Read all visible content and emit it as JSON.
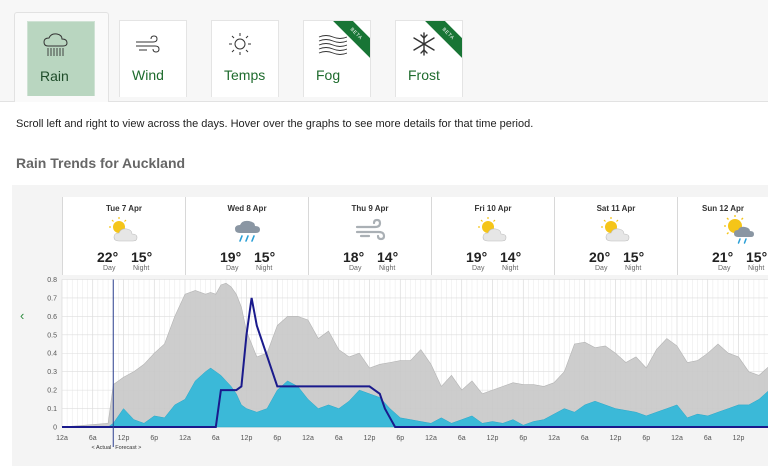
{
  "tabs": [
    {
      "label": "Rain",
      "icon": "rain-cloud-icon",
      "active": true,
      "beta": false
    },
    {
      "label": "Wind",
      "icon": "wind-icon",
      "active": false,
      "beta": false
    },
    {
      "label": "Temps",
      "icon": "sun-icon",
      "active": false,
      "beta": false
    },
    {
      "label": "Fog",
      "icon": "fog-icon",
      "active": false,
      "beta": true
    },
    {
      "label": "Frost",
      "icon": "snowflake-icon",
      "active": false,
      "beta": true
    }
  ],
  "beta_label": "BETA",
  "instructions": "Scroll left and right to view across the days. Hover over the graphs to see more details for that time period.",
  "section_title": "Rain Trends for Auckland",
  "scroll_left_icon": "chevron-left-icon",
  "day_label": "Day",
  "night_label": "Night",
  "days": [
    {
      "name": "Tue 7 Apr",
      "day": "22°",
      "night": "15°",
      "icon": "partly-cloudy-icon"
    },
    {
      "name": "Wed 8 Apr",
      "day": "19°",
      "night": "15°",
      "icon": "showers-icon"
    },
    {
      "name": "Thu 9 Apr",
      "day": "18°",
      "night": "14°",
      "icon": "windy-icon"
    },
    {
      "name": "Fri 10 Apr",
      "day": "19°",
      "night": "14°",
      "icon": "partly-cloudy-icon"
    },
    {
      "name": "Sat 11 Apr",
      "day": "20°",
      "night": "15°",
      "icon": "partly-cloudy-icon"
    },
    {
      "name": "Sun 12 Apr",
      "day": "21°",
      "night": "15°",
      "icon": "sun-showers-icon"
    }
  ],
  "chart_data": {
    "type": "area",
    "ylim": [
      0,
      0.8
    ],
    "yticks": [
      "0",
      "0.1",
      "0.2",
      "0.3",
      "0.4",
      "0.5",
      "0.6",
      "0.7",
      "0.8"
    ],
    "xticks": [
      "12a",
      "6a",
      "12p",
      "6p",
      "12a",
      "6a",
      "12p",
      "6p",
      "12a",
      "6a",
      "12p",
      "6p",
      "12a",
      "6a",
      "12p",
      "6p",
      "12a",
      "6a",
      "12p",
      "6p",
      "12a",
      "6a",
      "12p",
      "6p",
      "12a"
    ],
    "legend_actual": "< Actual",
    "legend_forecast": "Forecast >",
    "colors": {
      "range": "#c8c8c8",
      "likely": "#3bb9d8",
      "actual_line": "#1a1a8c",
      "now_line": "#2b3f8f"
    },
    "hours": [
      0,
      9,
      10,
      12,
      14,
      16,
      18,
      20,
      22,
      24,
      26,
      28,
      29,
      30,
      31,
      32,
      33,
      34,
      35,
      36,
      38,
      40,
      42,
      44,
      46,
      48,
      50,
      52,
      54,
      56,
      58,
      60,
      62,
      64,
      66,
      68,
      70,
      72,
      74,
      76,
      78,
      80,
      82,
      84,
      86,
      88,
      90,
      92,
      94,
      96,
      98,
      100,
      102,
      104,
      106,
      108,
      110,
      112,
      114,
      116,
      118,
      120,
      122,
      124,
      126,
      128,
      130,
      132,
      134,
      136,
      138,
      140,
      142,
      144,
      146
    ],
    "range_max": [
      0,
      0.02,
      0.23,
      0.27,
      0.3,
      0.34,
      0.4,
      0.45,
      0.6,
      0.72,
      0.74,
      0.72,
      0.73,
      0.72,
      0.77,
      0.78,
      0.76,
      0.72,
      0.65,
      0.52,
      0.38,
      0.4,
      0.55,
      0.6,
      0.6,
      0.58,
      0.48,
      0.52,
      0.42,
      0.38,
      0.4,
      0.32,
      0.34,
      0.35,
      0.36,
      0.36,
      0.42,
      0.34,
      0.22,
      0.28,
      0.2,
      0.25,
      0.18,
      0.2,
      0.22,
      0.24,
      0.23,
      0.23,
      0.22,
      0.24,
      0.3,
      0.45,
      0.46,
      0.43,
      0.44,
      0.4,
      0.35,
      0.38,
      0.32,
      0.42,
      0.48,
      0.44,
      0.35,
      0.36,
      0.4,
      0.45,
      0.4,
      0.38,
      0.3,
      0.28,
      0.33,
      0.38,
      0.45,
      0.52,
      0.55
    ],
    "likely": [
      0,
      0,
      0.02,
      0.1,
      0.04,
      0.02,
      0.06,
      0.05,
      0.12,
      0.15,
      0.25,
      0.3,
      0.32,
      0.3,
      0.28,
      0.25,
      0.22,
      0.18,
      0.12,
      0.1,
      0.08,
      0.1,
      0.2,
      0.25,
      0.22,
      0.15,
      0.1,
      0.12,
      0.1,
      0.14,
      0.2,
      0.18,
      0.16,
      0.1,
      0.05,
      0.04,
      0.03,
      0.02,
      0.05,
      0.02,
      0.04,
      0.06,
      0.02,
      0.03,
      0.02,
      0.04,
      0.01,
      0.03,
      0.04,
      0.07,
      0.1,
      0.08,
      0.12,
      0.14,
      0.12,
      0.1,
      0.09,
      0.08,
      0.06,
      0.08,
      0.1,
      0.12,
      0.05,
      0.07,
      0.06,
      0.08,
      0.1,
      0.12,
      0.12,
      0.15,
      0.2,
      0.25,
      0.28,
      0.35,
      0.55
    ],
    "actual_hours": [
      0,
      30,
      31,
      32,
      33,
      34,
      35,
      36,
      37,
      38,
      42,
      60,
      61,
      62,
      63,
      64,
      65,
      144,
      145,
      146
    ],
    "actual_values": [
      0,
      0,
      0.2,
      0.2,
      0.2,
      0.2,
      0.22,
      0.5,
      0.7,
      0.55,
      0.22,
      0.22,
      0.2,
      0.18,
      0.1,
      0.05,
      0,
      0,
      0.2,
      0.5
    ],
    "now_hour": 10
  }
}
